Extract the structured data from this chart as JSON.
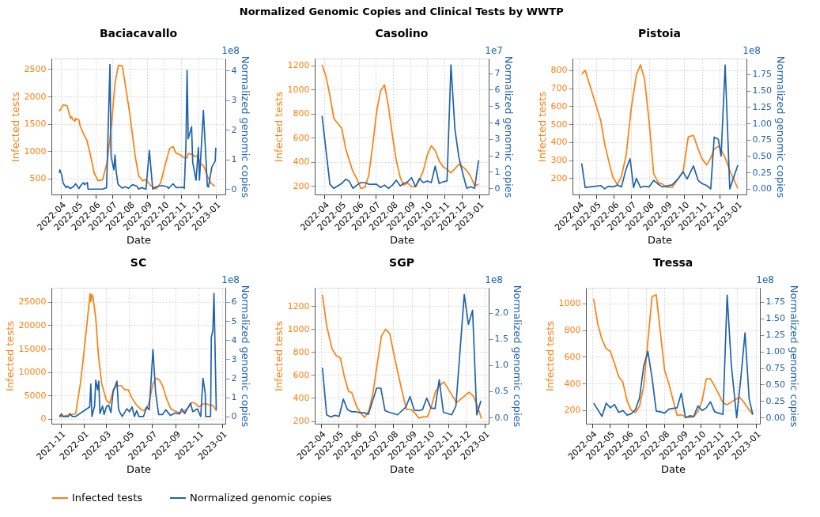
{
  "chart_data": [
    {
      "type": "line",
      "title": "Baciacavallo",
      "xlabel": "Date",
      "ylabel": "Infected tests",
      "y2label": "Normalized genomic copies",
      "annotations": [
        "1e8"
      ],
      "grid": true,
      "legend": "bottom",
      "xlim": [
        "2022-03-15",
        "2023-01-18"
      ],
      "xticks": [
        "2022-04",
        "2022-05",
        "2022-06",
        "2022-07",
        "2022-08",
        "2022-09",
        "2022-10",
        "2022-11",
        "2022-12",
        "2023-01"
      ],
      "ylim": [
        210,
        2695
      ],
      "yticks": [
        500,
        1000,
        1500,
        2000,
        2500
      ],
      "y2lim": [
        -0.18,
        4.4
      ],
      "y2ticks": [
        0,
        1,
        2,
        3,
        4
      ],
      "series": [
        {
          "name": "Infected tests",
          "color": "#ff7f0e",
          "x": [
            "2022-03-29",
            "2022-03-30",
            "2022-04-05",
            "2022-04-12",
            "2022-04-18",
            "2022-04-20",
            "2022-04-22",
            "2022-04-26",
            "2022-04-27",
            "2022-05-03",
            "2022-05-05",
            "2022-05-12",
            "2022-05-17",
            "2022-05-24",
            "2022-05-30",
            "2022-06-06",
            "2022-06-14",
            "2022-06-22",
            "2022-06-30",
            "2022-07-06",
            "2022-07-12",
            "2022-07-19",
            "2022-07-26",
            "2022-08-01",
            "2022-08-11",
            "2022-08-17",
            "2022-08-24",
            "2022-08-30",
            "2022-09-07",
            "2022-09-17",
            "2022-09-25",
            "2022-10-03",
            "2022-10-11",
            "2022-10-17",
            "2022-10-22",
            "2022-10-29",
            "2022-11-06",
            "2022-11-11",
            "2022-11-13",
            "2022-11-21",
            "2022-11-25",
            "2022-11-29",
            "2022-12-05",
            "2022-12-11",
            "2022-12-17",
            "2022-12-23",
            "2022-12-29",
            "2022-12-31"
          ],
          "values": [
            1760,
            1740,
            1850,
            1830,
            1600,
            1630,
            1580,
            1550,
            1600,
            1570,
            1460,
            1300,
            1200,
            900,
            600,
            460,
            480,
            800,
            1500,
            2250,
            2570,
            2560,
            2100,
            1700,
            900,
            550,
            460,
            480,
            380,
            310,
            420,
            750,
            1050,
            1090,
            970,
            940,
            880,
            880,
            960,
            940,
            900,
            920,
            780,
            720,
            550,
            420,
            370,
            370
          ]
        },
        {
          "name": "Normalized genomic copies",
          "color": "#1f63ad",
          "axis": "y2",
          "x": [
            "2022-03-29",
            "2022-03-30",
            "2022-04-02",
            "2022-04-05",
            "2022-04-10",
            "2022-04-12",
            "2022-04-18",
            "2022-04-24",
            "2022-04-27",
            "2022-05-03",
            "2022-05-06",
            "2022-05-11",
            "2022-05-13",
            "2022-05-18",
            "2022-05-19",
            "2022-06-14",
            "2022-06-21",
            "2022-06-27",
            "2022-06-29",
            "2022-07-04",
            "2022-07-06",
            "2022-07-08",
            "2022-07-11",
            "2022-07-12",
            "2022-07-19",
            "2022-07-24",
            "2022-07-30",
            "2022-08-06",
            "2022-08-14",
            "2022-08-17",
            "2022-08-22",
            "2022-08-30",
            "2022-09-05",
            "2022-09-11",
            "2022-09-17",
            "2022-09-27",
            "2022-10-07",
            "2022-10-09",
            "2022-10-17",
            "2022-10-23",
            "2022-11-04",
            "2022-11-06",
            "2022-11-09",
            "2022-11-11",
            "2022-11-13",
            "2022-11-19",
            "2022-11-21",
            "2022-11-27",
            "2022-12-01",
            "2022-12-03",
            "2022-12-10",
            "2022-12-17",
            "2022-12-19",
            "2022-12-25",
            "2022-12-31",
            "2023-01-01"
          ],
          "values": [
            0.55,
            0.65,
            0.5,
            0.2,
            0.05,
            0.1,
            0.02,
            0.1,
            0.18,
            0.02,
            0.12,
            0.22,
            0.15,
            0.22,
            0.0,
            0.0,
            0.05,
            4.2,
            1.1,
            0.65,
            1.15,
            0.6,
            0.2,
            0.15,
            0.03,
            0.08,
            0.03,
            0.15,
            0.1,
            0.0,
            0.05,
            0.0,
            1.3,
            0.0,
            0.08,
            0.12,
            0.08,
            0.02,
            0.18,
            0.05,
            0.06,
            0.02,
            1.5,
            4.0,
            1.7,
            2.1,
            0.9,
            0.3,
            1.4,
            0.3,
            2.65,
            0.1,
            0.07,
            0.75,
            0.95,
            1.4
          ]
        }
      ]
    },
    {
      "type": "line",
      "title": "Casolino",
      "subtitle": "Normalized Genomic Copies and Clinical Tests by WWTP",
      "xlabel": "Date",
      "ylabel": "Infected tests",
      "y2label": "Normalized genomic copies",
      "annotations": [
        "1e7"
      ],
      "grid": true,
      "xlim": [
        "2022-03-15",
        "2023-01-18"
      ],
      "xticks": [
        "2022-04",
        "2022-05",
        "2022-06",
        "2022-07",
        "2022-08",
        "2022-09",
        "2022-10",
        "2022-11",
        "2022-12",
        "2023-01"
      ],
      "ylim": [
        131,
        1258
      ],
      "yticks": [
        200,
        400,
        600,
        800,
        1000,
        1200
      ],
      "y2lim": [
        -0.37,
        7.89
      ],
      "y2ticks": [
        0,
        1,
        2,
        3,
        4,
        5,
        6,
        7
      ],
      "series": [
        {
          "color": "#ff7f0e",
          "x": [
            "2022-03-28",
            "2022-04-04",
            "2022-04-11",
            "2022-04-18",
            "2022-05-02",
            "2022-05-09",
            "2022-05-15",
            "2022-05-22",
            "2022-05-29",
            "2022-06-05",
            "2022-06-12",
            "2022-06-19",
            "2022-06-26",
            "2022-07-03",
            "2022-07-10",
            "2022-07-17",
            "2022-07-24",
            "2022-07-31",
            "2022-08-07",
            "2022-08-14",
            "2022-08-20",
            "2022-08-27",
            "2022-09-03",
            "2022-09-10",
            "2022-09-17",
            "2022-09-24",
            "2022-10-01",
            "2022-10-08",
            "2022-10-15",
            "2022-10-22",
            "2022-10-29",
            "2022-11-05",
            "2022-11-12",
            "2022-11-19",
            "2022-11-26",
            "2022-12-03",
            "2022-12-10",
            "2022-12-17",
            "2022-12-24",
            "2022-12-31"
          ],
          "values": [
            1205,
            1110,
            950,
            760,
            680,
            510,
            420,
            320,
            260,
            180,
            190,
            290,
            540,
            820,
            990,
            1040,
            860,
            620,
            410,
            270,
            210,
            225,
            195,
            195,
            250,
            330,
            460,
            535,
            495,
            410,
            360,
            340,
            310,
            345,
            380,
            360,
            330,
            280,
            205,
            215
          ]
        },
        {
          "color": "#1f63ad",
          "axis": "y2",
          "x": [
            "2022-03-28",
            "2022-04-11",
            "2022-04-18",
            "2022-05-02",
            "2022-05-09",
            "2022-05-15",
            "2022-05-22",
            "2022-05-29",
            "2022-06-05",
            "2022-06-12",
            "2022-06-19",
            "2022-07-03",
            "2022-07-10",
            "2022-07-17",
            "2022-07-24",
            "2022-07-31",
            "2022-08-07",
            "2022-08-14",
            "2022-08-20",
            "2022-08-27",
            "2022-09-03",
            "2022-09-10",
            "2022-09-17",
            "2022-09-24",
            "2022-10-01",
            "2022-10-08",
            "2022-10-15",
            "2022-10-22",
            "2022-10-29",
            "2022-11-05",
            "2022-11-12",
            "2022-11-19",
            "2022-11-26",
            "2022-12-03",
            "2022-12-10",
            "2022-12-17",
            "2022-12-24",
            "2022-12-31"
          ],
          "values": [
            4.4,
            0.25,
            0.0,
            0.3,
            0.55,
            0.45,
            0.0,
            0.2,
            0.35,
            0.35,
            0.25,
            0.25,
            0.05,
            0.2,
            0.0,
            0.2,
            0.5,
            0.15,
            0.3,
            0.4,
            0.65,
            0.1,
            0.6,
            0.35,
            0.45,
            0.35,
            1.35,
            0.3,
            0.4,
            0.45,
            7.5,
            3.6,
            1.9,
            0.9,
            0.0,
            0.1,
            0.0,
            1.7
          ]
        }
      ]
    },
    {
      "type": "line",
      "title": "Pistoia",
      "xlabel": "Date",
      "ylabel": "Infected tests",
      "y2label": "Normalized genomic copies",
      "annotations": [
        "1e8"
      ],
      "grid": true,
      "xlim": [
        "2022-03-21",
        "2023-01-17"
      ],
      "xticks": [
        "2022-04",
        "2022-05",
        "2022-06",
        "2022-07",
        "2022-08",
        "2022-09",
        "2022-10",
        "2022-11",
        "2022-12",
        "2023-01"
      ],
      "ylim": [
        110,
        865
      ],
      "yticks": [
        200,
        300,
        400,
        500,
        600,
        700,
        800
      ],
      "y2lim": [
        -0.086,
        1.99
      ],
      "y2ticks": [
        {
          "value": 0,
          "label": "0.00"
        },
        {
          "value": 0.25,
          "label": "0.25"
        },
        {
          "value": 0.5,
          "label": "0.50"
        },
        {
          "value": 0.75,
          "label": "0.75"
        },
        {
          "value": 1,
          "label": "1.00"
        },
        {
          "value": 1.25,
          "label": "1.25"
        },
        {
          "value": 1.5,
          "label": "1.50"
        },
        {
          "value": 1.75,
          "label": "1.75"
        }
      ],
      "series": [
        {
          "color": "#ff7f0e",
          "x": [
            "2022-04-06",
            "2022-04-12",
            "2022-05-09",
            "2022-05-16",
            "2022-05-23",
            "2022-05-30",
            "2022-06-07",
            "2022-06-14",
            "2022-06-22",
            "2022-07-01",
            "2022-07-10",
            "2022-07-17",
            "2022-07-24",
            "2022-08-01",
            "2022-08-09",
            "2022-08-17",
            "2022-08-24",
            "2022-08-31",
            "2022-09-10",
            "2022-09-20",
            "2022-09-29",
            "2022-10-08",
            "2022-10-17",
            "2022-10-25",
            "2022-11-01",
            "2022-11-09",
            "2022-11-16",
            "2022-11-22",
            "2022-11-30",
            "2022-12-06",
            "2022-12-12",
            "2022-12-19",
            "2022-12-25",
            "2023-01-02"
          ],
          "values": [
            777,
            800,
            520,
            388,
            294,
            206,
            165,
            212,
            325,
            589,
            777,
            830,
            752,
            514,
            225,
            175,
            169,
            150,
            150,
            194,
            238,
            430,
            438,
            363,
            307,
            274,
            313,
            363,
            378,
            345,
            307,
            244,
            200,
            144
          ]
        },
        {
          "color": "#1f63ad",
          "axis": "y2",
          "x": [
            "2022-04-06",
            "2022-04-12",
            "2022-04-30",
            "2022-05-09",
            "2022-05-16",
            "2022-05-22",
            "2022-05-31",
            "2022-06-07",
            "2022-06-14",
            "2022-06-22",
            "2022-06-29",
            "2022-07-05",
            "2022-07-10",
            "2022-07-17",
            "2022-07-24",
            "2022-08-01",
            "2022-08-09",
            "2022-08-17",
            "2022-08-24",
            "2022-09-10",
            "2022-09-20",
            "2022-09-29",
            "2022-10-06",
            "2022-10-17",
            "2022-10-25",
            "2022-11-01",
            "2022-11-09",
            "2022-11-16",
            "2022-11-22",
            "2022-11-29",
            "2022-12-04",
            "2022-12-11",
            "2022-12-19",
            "2023-01-02"
          ],
          "values": [
            0.39,
            0.02,
            0.04,
            0.05,
            0.0,
            0.04,
            0.03,
            0.06,
            0.03,
            0.3,
            0.46,
            0.02,
            0.16,
            0.02,
            0.04,
            0.03,
            0.13,
            0.07,
            0.03,
            0.06,
            0.15,
            0.26,
            0.15,
            0.35,
            0.13,
            0.08,
            0.05,
            0.0,
            0.79,
            0.76,
            0.5,
            1.89,
            0.0,
            0.36
          ]
        }
      ]
    },
    {
      "type": "line",
      "title": "SC",
      "xlabel": "Date",
      "ylabel": "Infected tests",
      "y2label": "Normalized genomic copies",
      "annotations": [
        "1e8"
      ],
      "grid": true,
      "xlim": [
        "2021-10-08",
        "2023-01-10"
      ],
      "xticks": [
        "2021-11",
        "2022-01",
        "2022-03",
        "2022-05",
        "2022-07",
        "2022-09",
        "2022-11",
        "2023-01"
      ],
      "ylim": [
        -1060,
        28030
      ],
      "yticks": [
        0,
        5000,
        10000,
        15000,
        20000,
        25000
      ],
      "y2lim": [
        -0.38,
        6.74
      ],
      "y2ticks": [
        0,
        1,
        2,
        3,
        4,
        5,
        6
      ],
      "series": [
        {
          "color": "#ff7f0e",
          "x": [
            "2021-10-29",
            "2021-11-04",
            "2021-12-07",
            "2021-12-11",
            "2021-12-24",
            "2022-01-05",
            "2022-01-18",
            "2022-01-20",
            "2022-01-23",
            "2022-01-26",
            "2022-02-02",
            "2022-02-09",
            "2022-02-18",
            "2022-03-02",
            "2022-03-11",
            "2022-03-21",
            "2022-03-31",
            "2022-04-10",
            "2022-04-20",
            "2022-04-29",
            "2022-05-08",
            "2022-05-20",
            "2022-05-31",
            "2022-06-09",
            "2022-06-21",
            "2022-07-03",
            "2022-07-11",
            "2022-07-20",
            "2022-07-29",
            "2022-08-07",
            "2022-08-19",
            "2022-08-31",
            "2022-09-11",
            "2022-09-23",
            "2022-10-05",
            "2022-10-14",
            "2022-10-23",
            "2022-11-01",
            "2022-11-09",
            "2022-11-18",
            "2022-11-27",
            "2022-12-09",
            "2022-12-18"
          ],
          "values": [
            400,
            500,
            1000,
            1100,
            7800,
            16500,
            26800,
            25100,
            26600,
            25900,
            21500,
            13600,
            7400,
            4000,
            3300,
            6400,
            7100,
            7100,
            6200,
            6200,
            4500,
            3000,
            2100,
            1700,
            3000,
            7400,
            8700,
            8300,
            6900,
            4500,
            2100,
            1600,
            1300,
            1600,
            2500,
            3500,
            3300,
            2500,
            3000,
            3300,
            3000,
            2800,
            1700
          ]
        },
        {
          "color": "#1f63ad",
          "axis": "y2",
          "x": [
            "2021-10-29",
            "2021-11-04",
            "2021-11-07",
            "2021-11-22",
            "2021-11-26",
            "2021-12-02",
            "2021-12-11",
            "2022-01-17",
            "2022-01-20",
            "2022-01-23",
            "2022-01-30",
            "2022-02-02",
            "2022-02-07",
            "2022-02-10",
            "2022-02-13",
            "2022-02-20",
            "2022-02-24",
            "2022-03-02",
            "2022-03-08",
            "2022-03-14",
            "2022-03-20",
            "2022-03-30",
            "2022-04-03",
            "2022-04-07",
            "2022-04-13",
            "2022-04-25",
            "2022-05-02",
            "2022-05-09",
            "2022-05-15",
            "2022-05-21",
            "2022-05-27",
            "2022-06-08",
            "2022-06-17",
            "2022-06-23",
            "2022-06-27",
            "2022-07-03",
            "2022-07-10",
            "2022-07-18",
            "2022-07-28",
            "2022-08-06",
            "2022-08-18",
            "2022-08-30",
            "2022-09-11",
            "2022-09-17",
            "2022-09-25",
            "2022-10-10",
            "2022-10-16",
            "2022-10-28",
            "2022-11-06",
            "2022-11-12",
            "2022-11-18",
            "2022-11-19",
            "2022-12-02",
            "2022-12-04",
            "2022-12-08",
            "2022-12-11",
            "2022-12-17"
          ],
          "values": [
            0,
            0.13,
            0,
            0,
            0.15,
            0,
            0,
            0.5,
            1.7,
            0,
            0.55,
            1.9,
            1.4,
            1.85,
            0.15,
            0.55,
            0.1,
            0.5,
            0.6,
            0.2,
            1.3,
            1.85,
            0.4,
            0.2,
            0,
            0.4,
            0.25,
            0.5,
            0.0,
            0.3,
            0.0,
            0,
            0.5,
            0.35,
            1.55,
            3.5,
            1.25,
            0.1,
            0.1,
            0.35,
            0.05,
            0.18,
            0.13,
            0.4,
            0.15,
            0.7,
            0.25,
            0.4,
            0,
            2.0,
            1.2,
            0,
            0,
            4.15,
            4.5,
            6.45,
            0.33
          ]
        }
      ]
    },
    {
      "type": "line",
      "title": "SGP",
      "xlabel": "Date",
      "ylabel": "Infected tests",
      "y2label": "Normalized genomic copies",
      "annotations": [
        "1e8"
      ],
      "grid": true,
      "xlim": [
        "2022-03-22",
        "2023-01-08"
      ],
      "xticks": [
        "2022-04",
        "2022-05",
        "2022-06",
        "2022-07",
        "2022-08",
        "2022-09",
        "2022-10",
        "2022-11",
        "2022-12",
        "2023-01"
      ],
      "ylim": [
        176,
        1361
      ],
      "yticks": [
        200,
        400,
        600,
        800,
        1000,
        1200
      ],
      "y2lim": [
        -0.12,
        2.48
      ],
      "y2ticks": [
        {
          "value": 0,
          "label": "0.0"
        },
        {
          "value": 0.5,
          "label": "0.5"
        },
        {
          "value": 1,
          "label": "1.0"
        },
        {
          "value": 1.5,
          "label": "1.5"
        },
        {
          "value": 2,
          "label": "2.0"
        }
      ],
      "series": [
        {
          "color": "#ff7f0e",
          "x": [
            "2022-04-04",
            "2022-04-11",
            "2022-04-20",
            "2022-04-27",
            "2022-05-04",
            "2022-05-11",
            "2022-05-18",
            "2022-05-23",
            "2022-05-31",
            "2022-06-07",
            "2022-06-14",
            "2022-06-21",
            "2022-06-28",
            "2022-07-05",
            "2022-07-12",
            "2022-07-19",
            "2022-07-26",
            "2022-08-02",
            "2022-08-09",
            "2022-08-16",
            "2022-08-23",
            "2022-08-30",
            "2022-09-06",
            "2022-09-13",
            "2022-09-20",
            "2022-09-27",
            "2022-10-04",
            "2022-10-11",
            "2022-10-18",
            "2022-10-25",
            "2022-11-01",
            "2022-11-08",
            "2022-11-15",
            "2022-11-22",
            "2022-11-29",
            "2022-12-06",
            "2022-12-13",
            "2022-12-20",
            "2022-12-27"
          ],
          "values": [
            1300,
            1030,
            830,
            770,
            750,
            580,
            455,
            450,
            330,
            270,
            230,
            290,
            450,
            700,
            940,
            1000,
            960,
            780,
            610,
            450,
            300,
            300,
            270,
            225,
            235,
            235,
            330,
            460,
            510,
            540,
            480,
            420,
            360,
            390,
            420,
            450,
            420,
            330,
            220
          ]
        },
        {
          "color": "#1f63ad",
          "axis": "y2",
          "x": [
            "2022-04-04",
            "2022-04-11",
            "2022-04-18",
            "2022-04-25",
            "2022-05-02",
            "2022-05-09",
            "2022-05-16",
            "2022-05-23",
            "2022-05-30",
            "2022-06-06",
            "2022-06-13",
            "2022-06-20",
            "2022-07-04",
            "2022-07-11",
            "2022-07-18",
            "2022-07-25",
            "2022-08-08",
            "2022-08-22",
            "2022-08-29",
            "2022-09-05",
            "2022-09-12",
            "2022-09-19",
            "2022-09-26",
            "2022-10-03",
            "2022-10-10",
            "2022-10-17",
            "2022-10-24",
            "2022-11-07",
            "2022-11-14",
            "2022-11-28",
            "2022-12-05",
            "2022-12-12",
            "2022-12-19",
            "2022-12-26"
          ],
          "values": [
            0.95,
            0.05,
            0.01,
            0.04,
            0.02,
            0.35,
            0.15,
            0.11,
            0.11,
            0.09,
            0.09,
            0.06,
            0.56,
            0.56,
            0.13,
            0.1,
            0.05,
            0.2,
            0.4,
            0.14,
            0.13,
            0.15,
            0.37,
            0.18,
            0.17,
            0.72,
            0.1,
            0.05,
            0.22,
            2.35,
            1.78,
            2.05,
            0.05,
            0.32
          ]
        }
      ]
    },
    {
      "type": "line",
      "title": "Tressa",
      "xlabel": "Date",
      "ylabel": "Infected tests",
      "y2label": "Normalized genomic copies",
      "annotations": [
        "1e8"
      ],
      "grid": true,
      "xlim": [
        "2022-03-22",
        "2023-01-08"
      ],
      "xticks": [
        "2022-04",
        "2022-05",
        "2022-06",
        "2022-07",
        "2022-08",
        "2022-09",
        "2022-10",
        "2022-11",
        "2022-12",
        "2023-01"
      ],
      "ylim": [
        98,
        1117
      ],
      "yticks": [
        200,
        400,
        600,
        800,
        1000
      ],
      "y2lim": [
        -0.09,
        1.96
      ],
      "y2ticks": [
        {
          "value": 0,
          "label": "0.00"
        },
        {
          "value": 0.25,
          "label": "0.25"
        },
        {
          "value": 0.5,
          "label": "0.50"
        },
        {
          "value": 0.75,
          "label": "0.75"
        },
        {
          "value": 1,
          "label": "1.00"
        },
        {
          "value": 1.25,
          "label": "1.25"
        },
        {
          "value": 1.5,
          "label": "1.50"
        },
        {
          "value": 1.75,
          "label": "1.75"
        }
      ],
      "series": [
        {
          "color": "#ff7f0e",
          "x": [
            "2022-04-04",
            "2022-04-11",
            "2022-04-18",
            "2022-04-25",
            "2022-05-02",
            "2022-05-09",
            "2022-05-16",
            "2022-05-23",
            "2022-05-30",
            "2022-06-06",
            "2022-06-13",
            "2022-06-20",
            "2022-06-27",
            "2022-07-04",
            "2022-07-11",
            "2022-07-18",
            "2022-07-25",
            "2022-08-01",
            "2022-08-08",
            "2022-08-15",
            "2022-08-22",
            "2022-08-29",
            "2022-09-05",
            "2022-09-12",
            "2022-09-19",
            "2022-09-26",
            "2022-10-03",
            "2022-10-10",
            "2022-10-17",
            "2022-10-24",
            "2022-10-31",
            "2022-11-07",
            "2022-11-14",
            "2022-11-21",
            "2022-11-28",
            "2022-12-05",
            "2022-12-12",
            "2022-12-19",
            "2022-12-27"
          ],
          "values": [
            1035,
            840,
            730,
            660,
            640,
            550,
            450,
            410,
            270,
            200,
            180,
            230,
            380,
            720,
            1050,
            1065,
            780,
            500,
            400,
            280,
            160,
            165,
            150,
            145,
            150,
            190,
            270,
            435,
            435,
            380,
            320,
            255,
            240,
            260,
            280,
            295,
            260,
            215,
            165
          ]
        },
        {
          "color": "#1f63ad",
          "axis": "y2",
          "x": [
            "2022-04-04",
            "2022-04-11",
            "2022-04-18",
            "2022-04-25",
            "2022-05-02",
            "2022-05-09",
            "2022-05-16",
            "2022-05-23",
            "2022-05-30",
            "2022-06-06",
            "2022-06-13",
            "2022-06-20",
            "2022-06-27",
            "2022-07-04",
            "2022-07-11",
            "2022-07-18",
            "2022-07-25",
            "2022-08-01",
            "2022-08-08",
            "2022-08-15",
            "2022-08-22",
            "2022-08-29",
            "2022-09-05",
            "2022-09-12",
            "2022-09-19",
            "2022-09-26",
            "2022-10-03",
            "2022-10-10",
            "2022-10-17",
            "2022-10-24",
            "2022-10-31",
            "2022-11-07",
            "2022-11-14",
            "2022-11-21",
            "2022-11-30",
            "2022-12-07",
            "2022-12-14",
            "2022-12-21",
            "2022-12-27"
          ],
          "values": [
            0.22,
            0.12,
            0.02,
            0.22,
            0.15,
            0.2,
            0.08,
            0.11,
            0.04,
            0.06,
            0.12,
            0.3,
            0.78,
            1.0,
            0.6,
            0.1,
            0.09,
            0.07,
            0.13,
            0.14,
            0.15,
            0.37,
            0.0,
            0.03,
            0.02,
            0.18,
            0.11,
            0.15,
            0.24,
            0.09,
            0.07,
            0.05,
            1.85,
            0.8,
            0.0,
            0.6,
            1.28,
            0.28,
            0.05
          ]
        }
      ]
    }
  ]
}
